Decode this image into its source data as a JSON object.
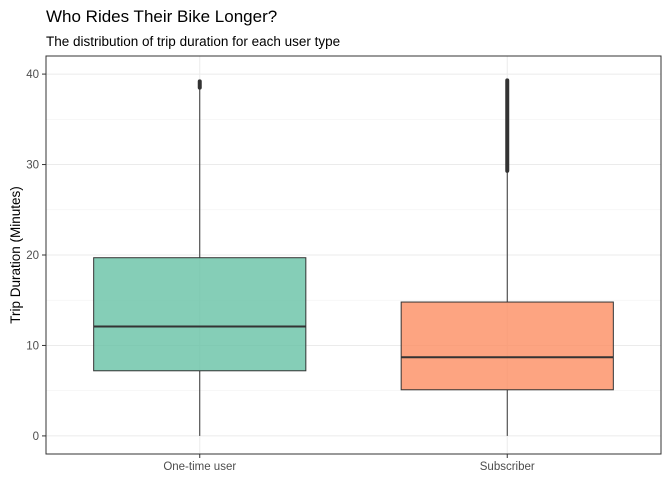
{
  "chart_data": {
    "type": "boxplot",
    "title": "Who Rides Their Bike Longer?",
    "subtitle": "The distribution of trip duration for each user type",
    "xlabel": "",
    "ylabel": "Trip Duration (Minutes)",
    "ylim": [
      -2,
      42
    ],
    "yticks": [
      0,
      10,
      20,
      30,
      40
    ],
    "grid": true,
    "legend": "none",
    "categories": [
      "One-time user",
      "Subscriber"
    ],
    "series": [
      {
        "category": "One-time user",
        "color": "#66c2a5",
        "whisker_low": 0,
        "q1": 7.2,
        "median": 12.1,
        "q3": 19.7,
        "whisker_high": 38.5,
        "outliers_from": 38.5,
        "outliers_to": 39.2
      },
      {
        "category": "Subscriber",
        "color": "#fc8d62",
        "whisker_low": 0,
        "q1": 5.1,
        "median": 8.7,
        "q3": 14.8,
        "whisker_high": 29.3,
        "outliers_from": 29.3,
        "outliers_to": 39.3
      }
    ]
  }
}
